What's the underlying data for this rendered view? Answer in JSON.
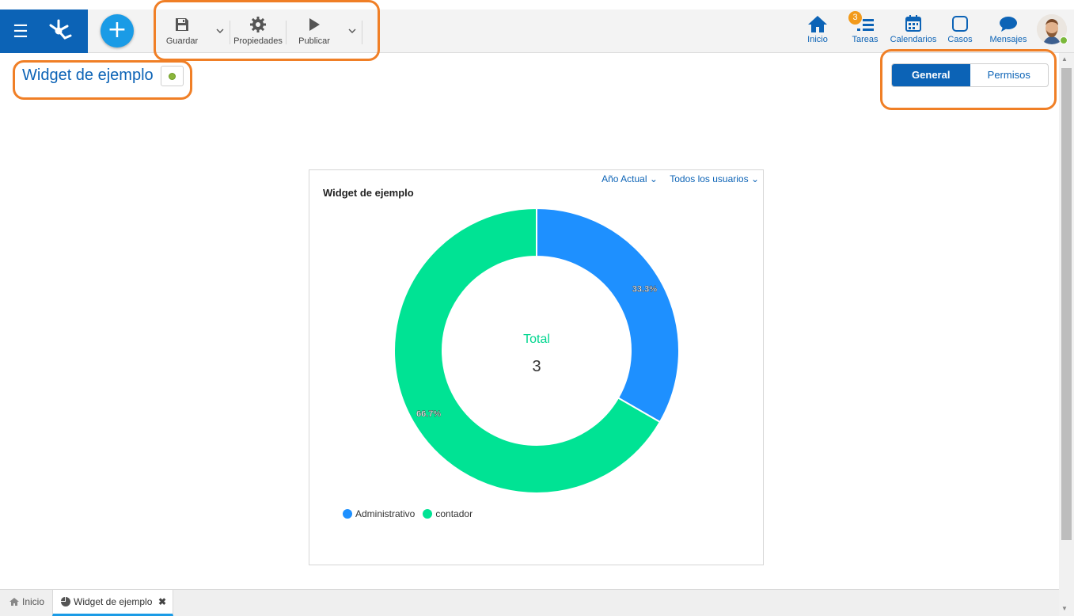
{
  "toolbar": {
    "save_label": "Guardar",
    "properties_label": "Propiedades",
    "publish_label": "Publicar"
  },
  "nav": {
    "items": [
      {
        "label": "Inicio",
        "icon": "home-icon"
      },
      {
        "label": "Tareas",
        "icon": "tasks-icon"
      },
      {
        "label": "Calendarios",
        "icon": "calendar-icon"
      },
      {
        "label": "Casos",
        "icon": "cases-icon"
      },
      {
        "label": "Mensajes",
        "icon": "messages-icon"
      }
    ],
    "tasks_badge": "3"
  },
  "page": {
    "title": "Widget de ejemplo",
    "tabs": [
      {
        "label": "General",
        "active": true
      },
      {
        "label": "Permisos",
        "active": false
      }
    ]
  },
  "widget": {
    "title": "Widget de ejemplo",
    "filter_period": "Año Actual",
    "filter_users": "Todos los usuarios",
    "center_label": "Total",
    "center_value": "3"
  },
  "chart_data": {
    "type": "pie",
    "subtype": "donut",
    "title": "Widget de ejemplo",
    "categories": [
      "Administrativo",
      "contador"
    ],
    "values": [
      1,
      2
    ],
    "data_labels": [
      "33.3%",
      "66.7%"
    ],
    "colors": [
      "#1e90ff",
      "#00e394"
    ],
    "legend": "bottom-left"
  },
  "footer": {
    "tabs": [
      {
        "label": "Inicio",
        "icon": "home-icon"
      },
      {
        "label": "Widget de ejemplo",
        "icon": "pie-chart-icon"
      }
    ]
  },
  "colors": {
    "primary": "#0c63b6",
    "accent": "#1a9be6",
    "highlight": "#f07f26"
  }
}
